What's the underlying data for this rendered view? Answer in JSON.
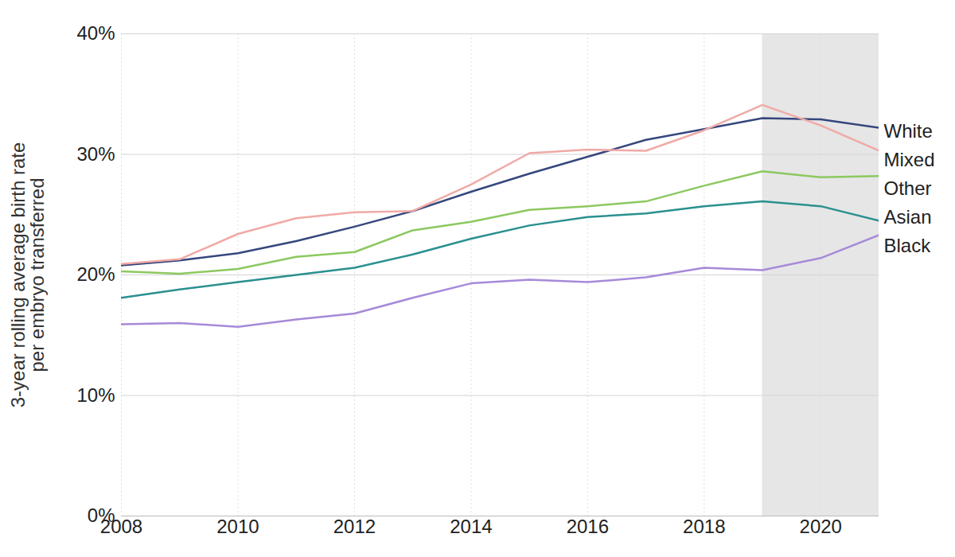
{
  "chart_data": {
    "type": "line",
    "y_label": "3-year rolling average birth rate\nper embryo transferred",
    "x": [
      2008,
      2009,
      2010,
      2011,
      2012,
      2013,
      2014,
      2015,
      2016,
      2017,
      2018,
      2019,
      2020,
      2021
    ],
    "series": [
      {
        "name": "White",
        "color": "#35477d",
        "values": [
          20.8,
          21.2,
          21.8,
          22.8,
          24.0,
          25.3,
          26.9,
          28.4,
          29.8,
          31.2,
          32.1,
          33.0,
          32.9,
          32.2
        ]
      },
      {
        "name": "Mixed",
        "color": "#f0aaa6",
        "values": [
          20.9,
          21.3,
          23.4,
          24.7,
          25.2,
          25.3,
          27.5,
          30.1,
          30.4,
          30.3,
          32.0,
          34.1,
          32.4,
          30.3
        ]
      },
      {
        "name": "Other",
        "color": "#8cc860",
        "values": [
          20.3,
          20.1,
          20.5,
          21.5,
          21.9,
          23.7,
          24.4,
          25.4,
          25.7,
          26.1,
          27.4,
          28.6,
          28.1,
          28.2
        ]
      },
      {
        "name": "Asian",
        "color": "#2a9090",
        "values": [
          18.1,
          18.8,
          19.4,
          20.0,
          20.6,
          21.7,
          23.0,
          24.1,
          24.8,
          25.1,
          25.7,
          26.1,
          25.7,
          24.5
        ]
      },
      {
        "name": "Black",
        "color": "#a68ad8",
        "values": [
          15.9,
          16.0,
          15.7,
          16.3,
          16.8,
          18.1,
          19.3,
          19.6,
          19.4,
          19.8,
          20.6,
          20.4,
          21.4,
          23.3
        ]
      }
    ],
    "xlim": [
      2008,
      2021
    ],
    "xticks": [
      2008,
      2010,
      2012,
      2014,
      2016,
      2018,
      2020
    ],
    "ylim": [
      0,
      40
    ],
    "yticks": [
      {
        "value": 0,
        "label": "0%"
      },
      {
        "value": 10,
        "label": "10%"
      },
      {
        "value": 20,
        "label": "20%"
      },
      {
        "value": 30,
        "label": "30%"
      },
      {
        "value": 40,
        "label": "40%"
      }
    ],
    "shaded_x_range": [
      2019,
      2021
    ],
    "grid": true,
    "legend": "right"
  }
}
